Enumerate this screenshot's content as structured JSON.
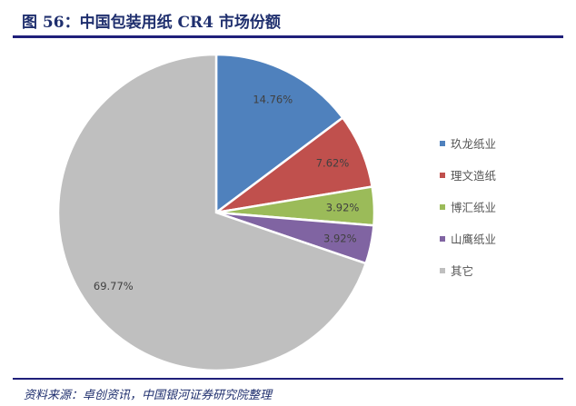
{
  "title": "图 56：中国包装用纸 CR4 市场份额",
  "source": "资料来源：卓创资讯，中国银河证券研究院整理",
  "chart_data": {
    "type": "pie",
    "title": "中国包装用纸 CR4 市场份额",
    "categories": [
      "玖龙纸业",
      "理文造纸",
      "博汇纸业",
      "山鹰纸业",
      "其它"
    ],
    "values": [
      14.76,
      7.62,
      3.92,
      3.92,
      69.77
    ],
    "labels": [
      "14.76%",
      "7.62%",
      "3.92%",
      "3.92%",
      "69.77%"
    ],
    "colors": [
      "#4f81bd",
      "#c0504d",
      "#9bbb59",
      "#8064a2",
      "#bfbfbf"
    ],
    "start": "12 o'clock, clockwise",
    "legend_position": "right"
  }
}
